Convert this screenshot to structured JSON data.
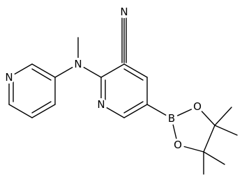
{
  "atoms": [
    "N",
    "N",
    "N",
    "N",
    "B",
    "O",
    "O"
  ]
}
